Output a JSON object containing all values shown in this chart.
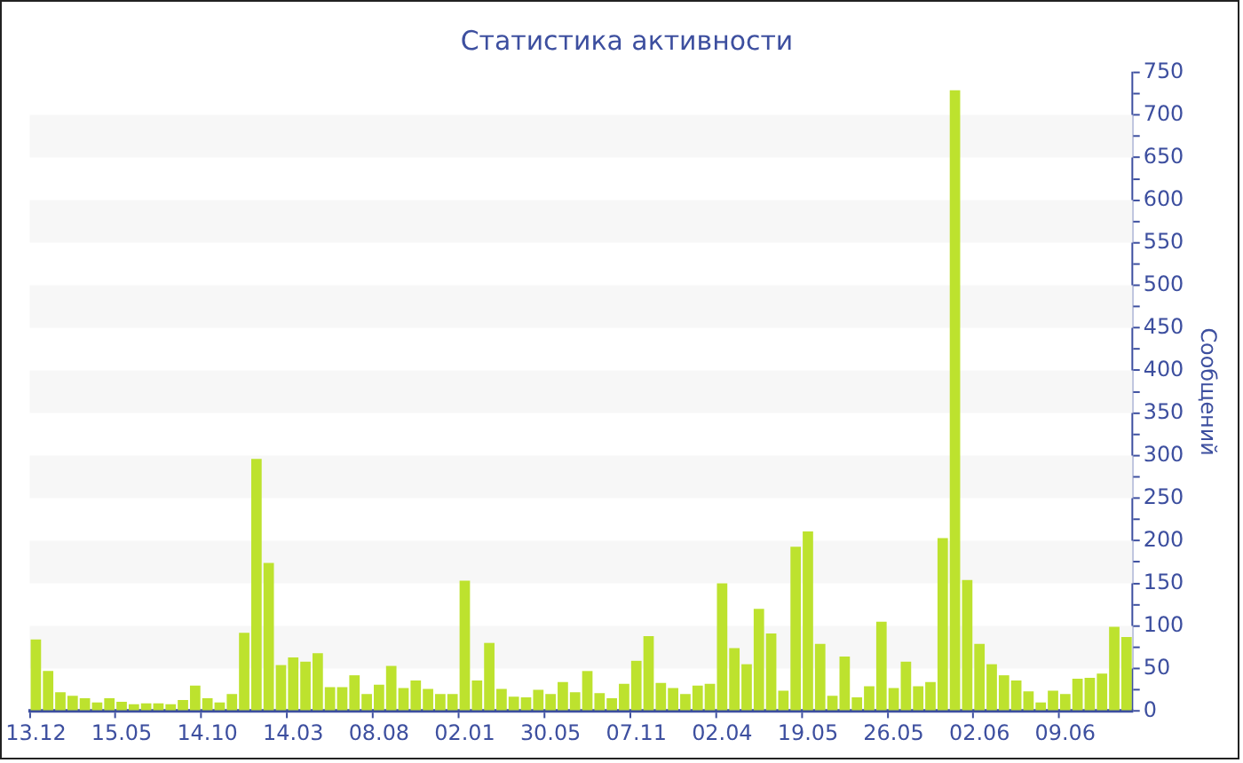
{
  "chart_data": {
    "type": "bar",
    "title": "Статистика активности",
    "ylabel": "Сообщений",
    "categories": [
      "13.12",
      null,
      null,
      null,
      null,
      null,
      null,
      "15.05",
      null,
      null,
      null,
      null,
      null,
      null,
      "14.10",
      null,
      null,
      null,
      null,
      null,
      null,
      "14.03",
      null,
      null,
      null,
      null,
      null,
      null,
      "08.08",
      null,
      null,
      null,
      null,
      null,
      null,
      "02.01",
      null,
      null,
      null,
      null,
      null,
      null,
      "30.05",
      null,
      null,
      null,
      null,
      null,
      null,
      "07.11",
      null,
      null,
      null,
      null,
      null,
      null,
      "02.04",
      null,
      null,
      null,
      null,
      null,
      null,
      "19.05",
      null,
      null,
      null,
      null,
      null,
      null,
      "26.05",
      null,
      null,
      null,
      null,
      null,
      null,
      "02.06",
      null,
      null,
      null,
      null,
      null,
      null,
      "09.06",
      null,
      null,
      null,
      null,
      null
    ],
    "values": [
      84,
      47,
      22,
      18,
      15,
      10,
      15,
      11,
      8,
      9,
      9,
      8,
      13,
      30,
      15,
      10,
      20,
      92,
      296,
      174,
      54,
      63,
      58,
      68,
      28,
      28,
      42,
      20,
      31,
      53,
      27,
      36,
      26,
      20,
      20,
      153,
      36,
      80,
      26,
      17,
      16,
      25,
      20,
      34,
      22,
      47,
      21,
      15,
      32,
      59,
      88,
      33,
      27,
      20,
      30,
      32,
      150,
      74,
      55,
      120,
      91,
      24,
      193,
      211,
      79,
      18,
      64,
      16,
      29,
      105,
      27,
      58,
      29,
      34,
      203,
      729,
      154,
      79,
      55,
      42,
      36,
      23,
      10,
      24,
      20,
      38,
      39,
      44,
      99,
      87
    ],
    "color": "#bde22e",
    "ylim": [
      0,
      750
    ],
    "yticks": [
      0,
      {
        "value": 25,
        "label": null
      },
      50,
      {
        "value": 75,
        "label": null
      },
      100,
      {
        "value": 125,
        "label": null
      },
      150,
      {
        "value": 175,
        "label": null
      },
      200,
      {
        "value": 225,
        "label": null
      },
      250,
      {
        "value": 275,
        "label": null
      },
      300,
      {
        "value": 325,
        "label": null
      },
      350,
      {
        "value": 375,
        "label": null
      },
      400,
      {
        "value": 425,
        "label": null
      },
      450,
      {
        "value": 475,
        "label": null
      },
      500,
      {
        "value": 525,
        "label": null
      },
      550,
      {
        "value": 575,
        "label": null
      },
      600,
      {
        "value": 625,
        "label": null
      },
      650,
      {
        "value": 675,
        "label": null
      },
      700,
      {
        "value": 725,
        "label": null
      },
      750
    ],
    "bands": [
      {
        "axis": "y",
        "from": 50,
        "to": 100,
        "color": "#f7f7f7"
      },
      {
        "axis": "y",
        "from": 150,
        "to": 200,
        "color": "#f7f7f7"
      },
      {
        "axis": "y",
        "from": 250,
        "to": 300,
        "color": "#f7f7f7"
      },
      {
        "axis": "y",
        "from": 350,
        "to": 400,
        "color": "#f7f7f7"
      },
      {
        "axis": "y",
        "from": 450,
        "to": 500,
        "color": "#f7f7f7"
      },
      {
        "axis": "y",
        "from": 550,
        "to": 600,
        "color": "#f7f7f7"
      },
      {
        "axis": "y",
        "from": 650,
        "to": 700,
        "color": "#f7f7f7"
      }
    ]
  }
}
